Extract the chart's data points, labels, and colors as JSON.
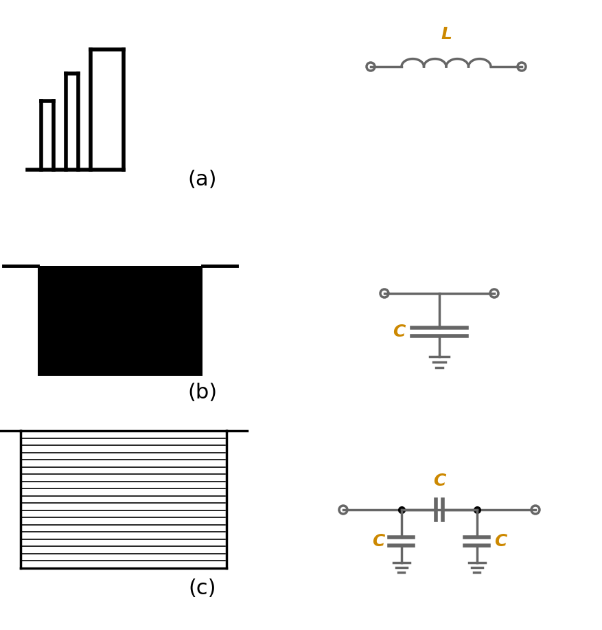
{
  "bg_color": "#ffffff",
  "label_color": "#000000",
  "orange_color": "#cc8800",
  "gray_color": "#666666",
  "lw_main": 2.5,
  "lw_coil": 1.8,
  "label_a": "(a)",
  "label_b": "(b)",
  "label_c": "(c)",
  "label_L": "L",
  "label_C": "C"
}
